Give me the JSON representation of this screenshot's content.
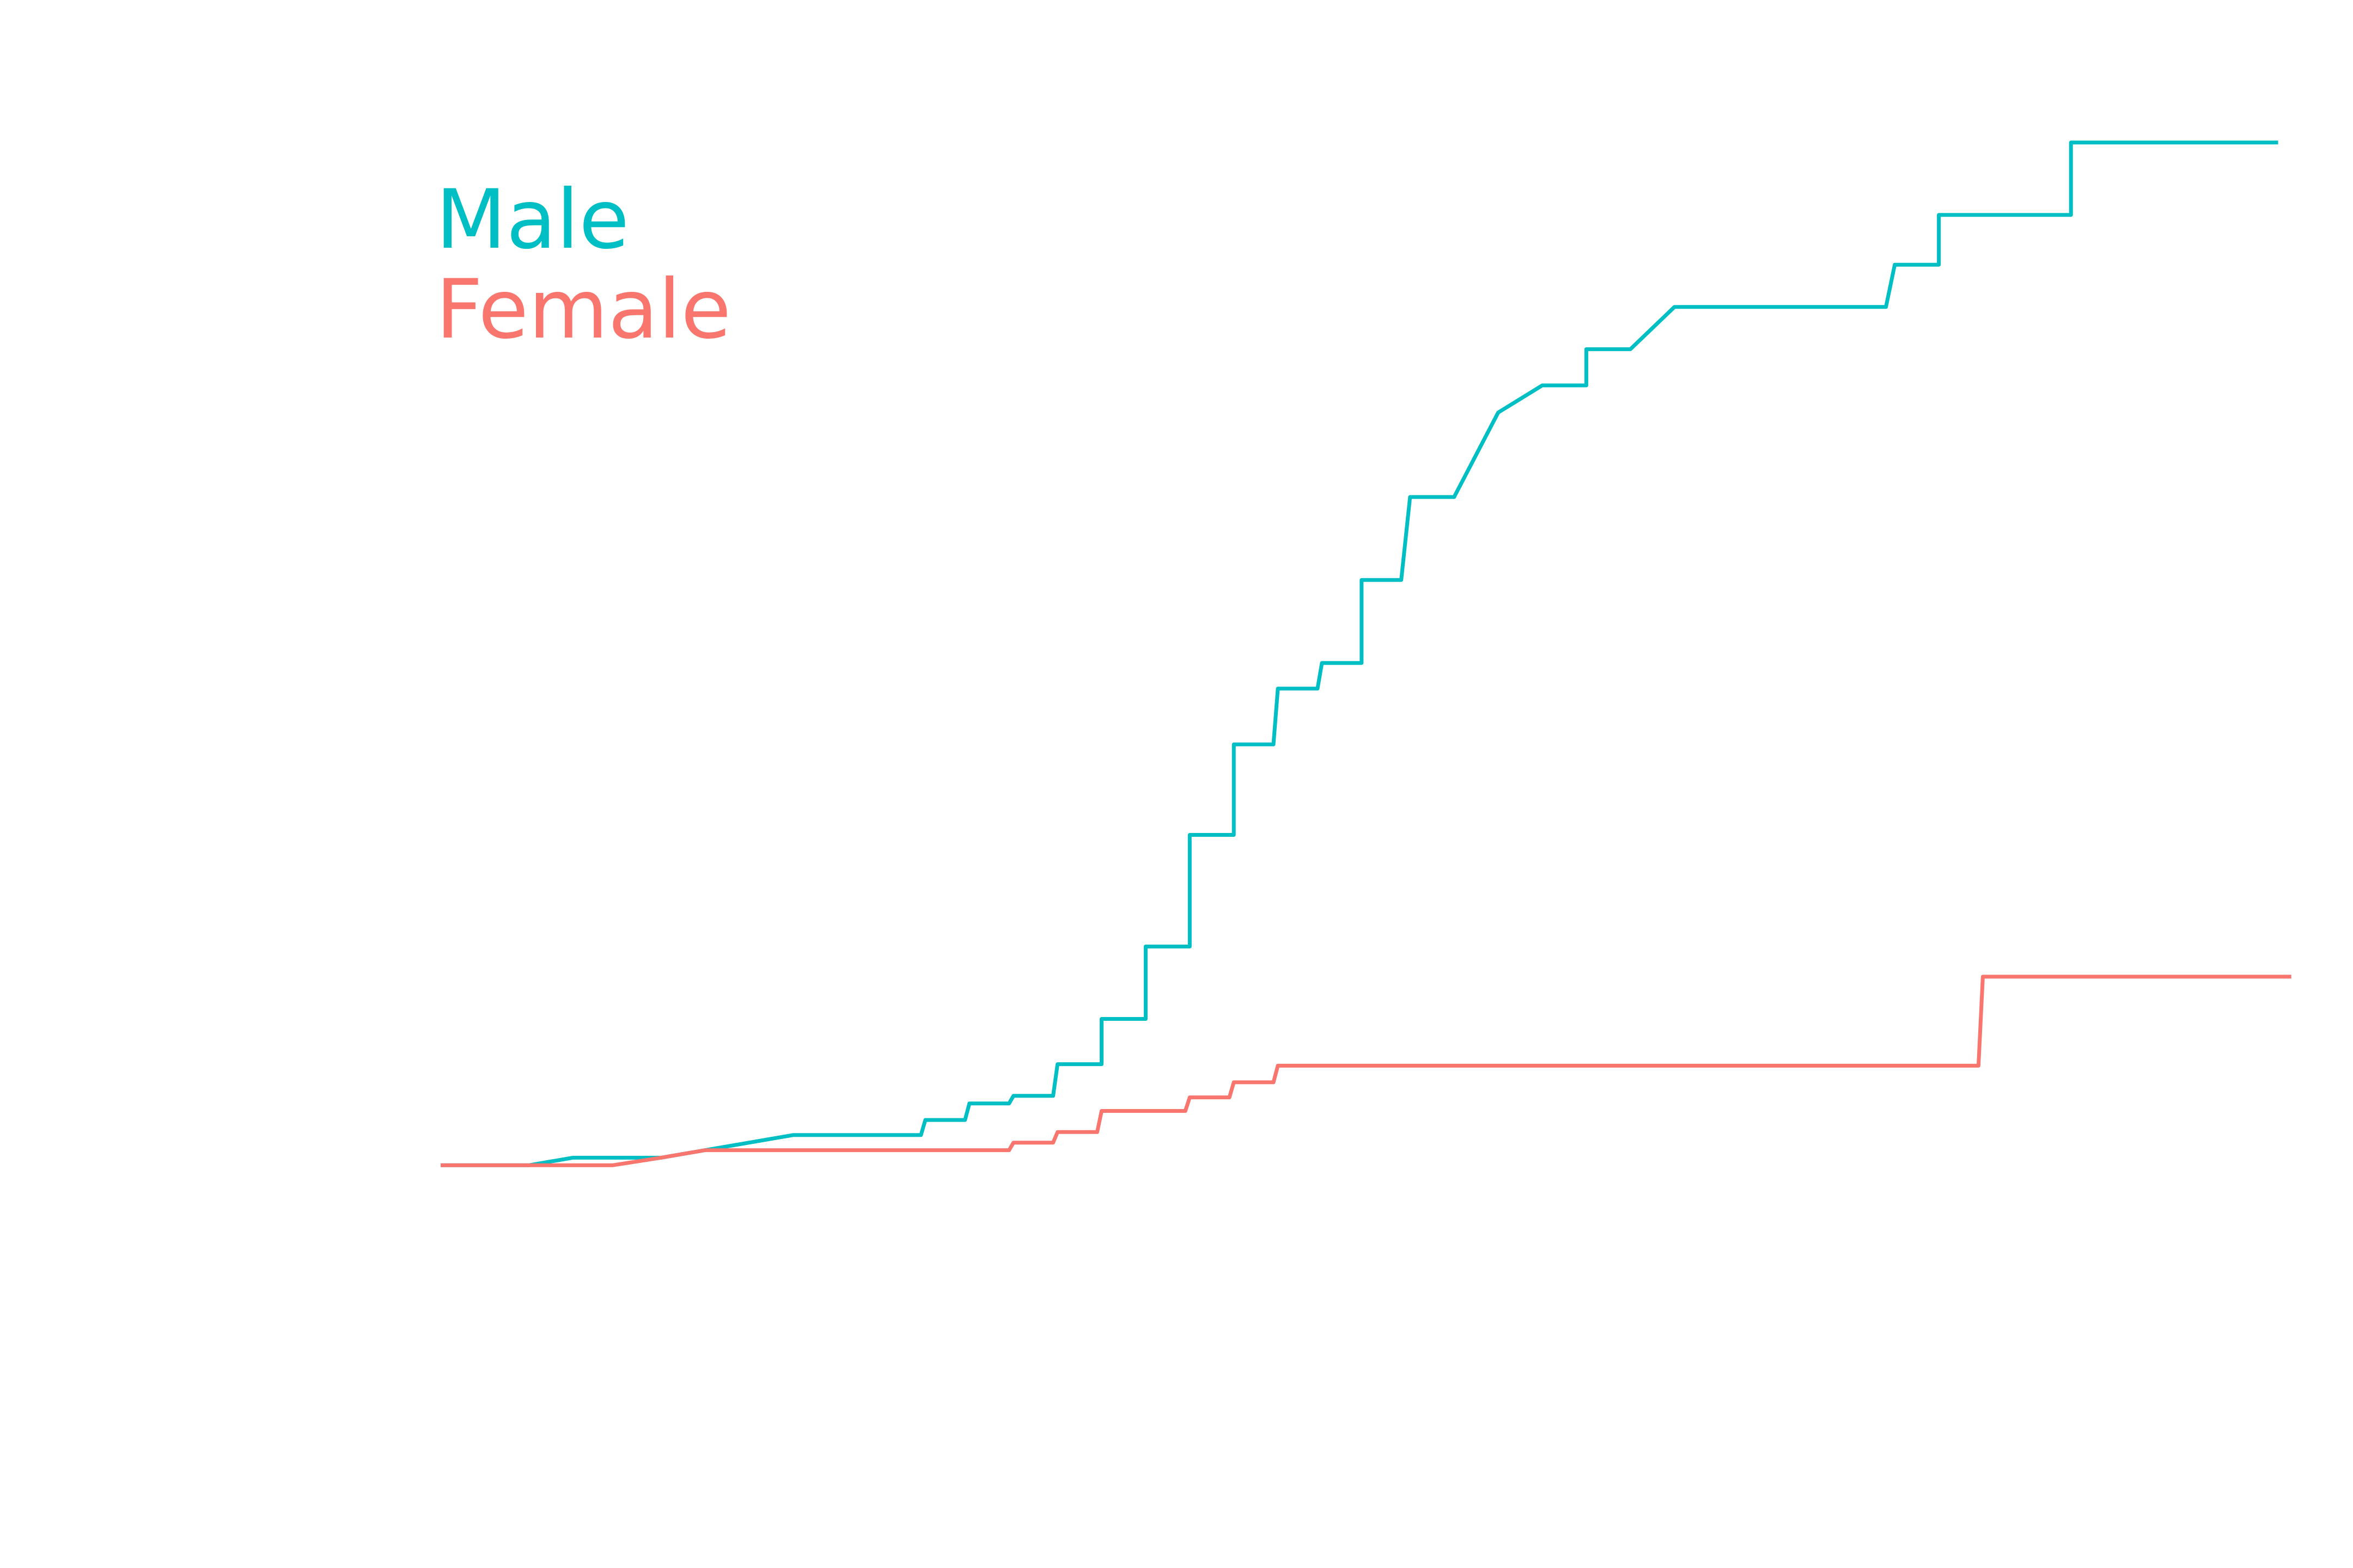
{
  "chart_data": {
    "type": "line",
    "legend": "top-left",
    "series": [
      {
        "name": "Male",
        "color": "#00BFC4",
        "x": [
          0,
          2,
          3,
          5,
          6,
          8,
          10.9,
          11,
          11.9,
          12,
          12.9,
          13,
          13.9,
          14,
          15,
          15,
          16,
          16,
          17,
          17,
          18,
          18,
          18.9,
          19,
          19.9,
          20,
          20.9,
          20.9,
          21.8,
          22,
          23,
          24,
          25,
          26,
          26,
          27,
          28,
          32.8,
          33,
          34,
          34,
          37,
          37,
          41.7
        ],
        "values": [
          0,
          0,
          1,
          1,
          2,
          4,
          4,
          6,
          6,
          8.2,
          8.2,
          9.2,
          9.2,
          13.4,
          13.4,
          19.4,
          19.4,
          29,
          29,
          43.8,
          43.8,
          55.8,
          55.8,
          63.2,
          63.2,
          66.6,
          66.6,
          77.6,
          77.6,
          88.6,
          88.6,
          99.8,
          103.4,
          103.4,
          108.2,
          108.2,
          113.8,
          113.8,
          119.4,
          119.4,
          126,
          126,
          135.6,
          135.6
        ]
      },
      {
        "name": "Female",
        "color": "#F8766D",
        "x": [
          0,
          3.9,
          5,
          6,
          12.9,
          13,
          13.9,
          14,
          14.9,
          15,
          16.9,
          17,
          17.9,
          18,
          18.9,
          19,
          34.9,
          35,
          42
        ],
        "values": [
          0,
          0,
          1,
          2,
          2,
          3,
          3,
          4.4,
          4.4,
          7.2,
          7.2,
          9,
          9,
          11,
          11,
          13.2,
          13.2,
          25,
          25
        ]
      }
    ],
    "xlim": [
      -10,
      43.4
    ],
    "ylim": [
      -53.4,
      154.5
    ]
  }
}
